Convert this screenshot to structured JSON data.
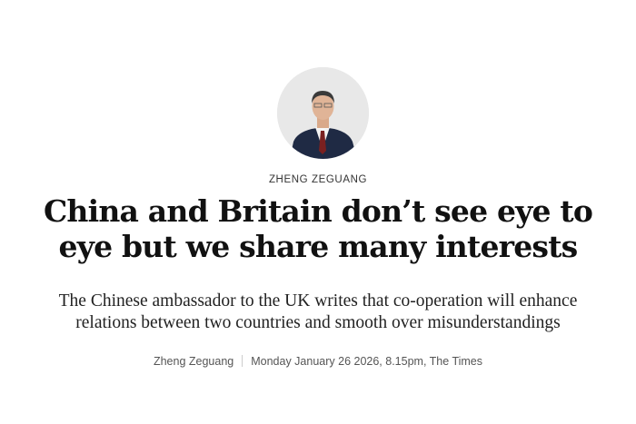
{
  "article": {
    "author_label": "ZHENG ZEGUANG",
    "headline": "China and Britain don’t see eye to eye but we share many interests",
    "standfirst": "The Chinese ambassador to the UK writes that co-operation will enhance relations between two countries and smooth over misunderstandings",
    "meta": {
      "author": "Zheng Zeguang",
      "date": "Monday January 26 2026, 8.15pm, The Times"
    },
    "avatar_icon": "author-portrait"
  }
}
